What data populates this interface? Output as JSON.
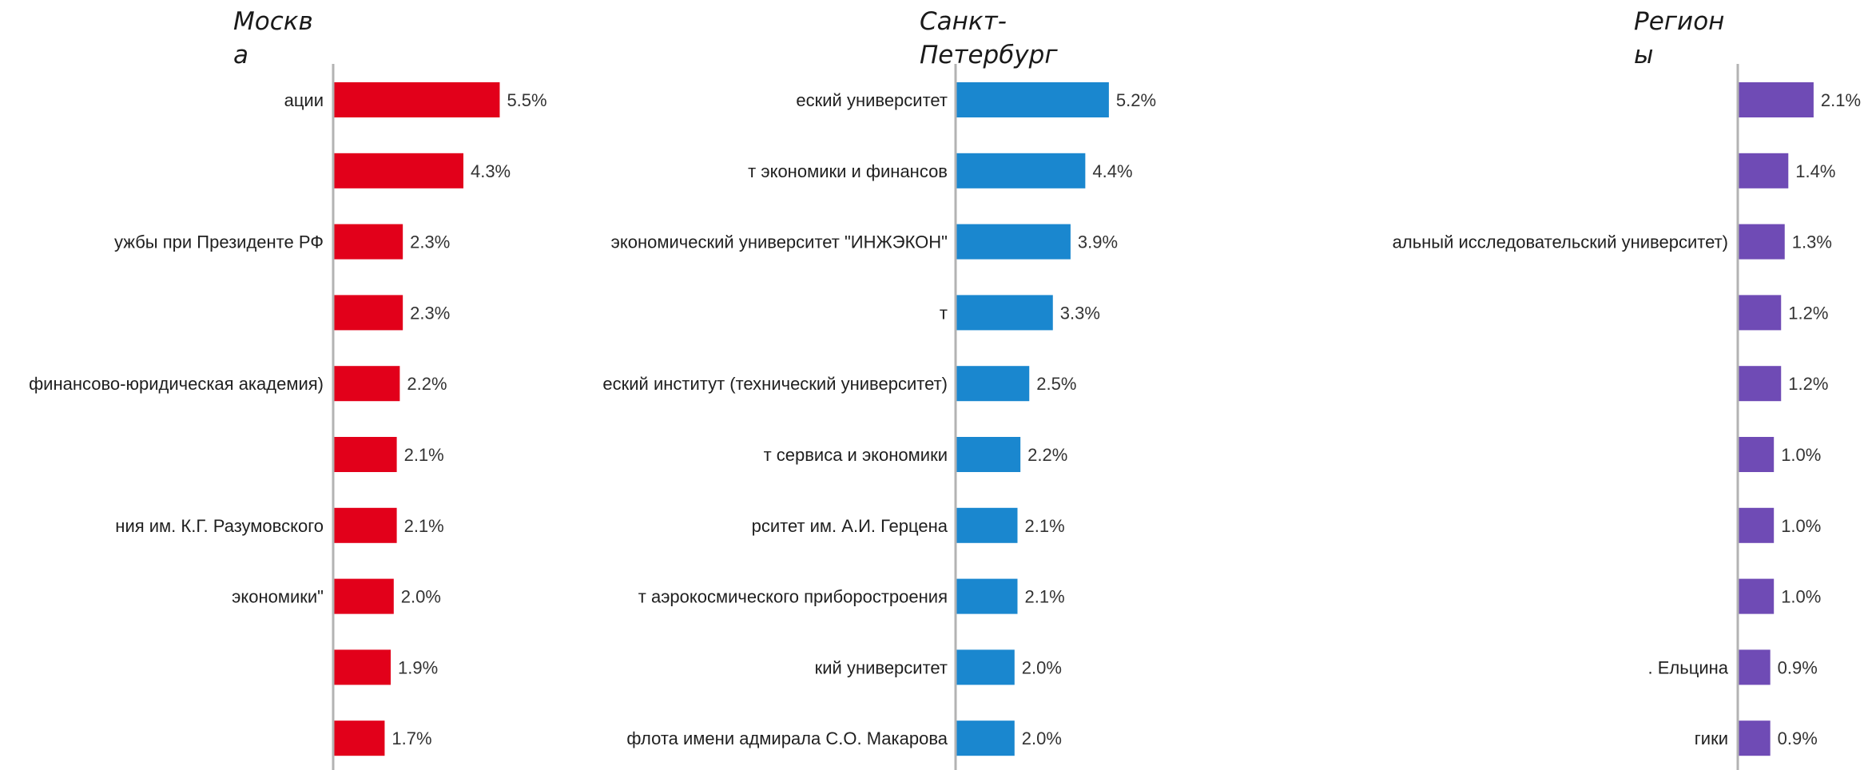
{
  "chart_data": [
    {
      "type": "bar",
      "orientation": "horizontal",
      "title": "Москва",
      "title_display": "Москв\nа",
      "color": "#e2001a",
      "categories": [
        "ации",
        "",
        "ужбы при Президенте РФ",
        "",
        "финансово-юридическая академия)",
        "",
        "ния им. К.Г. Разумовского",
        "экономики\"",
        "",
        ""
      ],
      "values": [
        5.5,
        4.3,
        2.3,
        2.3,
        2.2,
        2.1,
        2.1,
        2.0,
        1.9,
        1.7
      ],
      "value_labels": [
        "5.5%",
        "4.3%",
        "2.3%",
        "2.3%",
        "2.2%",
        "2.1%",
        "2.1%",
        "2.0%",
        "1.9%",
        "1.7%"
      ],
      "xlim": [
        0,
        6.0
      ],
      "grid": false
    },
    {
      "type": "bar",
      "orientation": "horizontal",
      "title": "Санкт-Петербург",
      "title_display": "Санкт-\nПетербург",
      "color": "#1a87cf",
      "categories": [
        "еский университет",
        "т экономики и финансов",
        "экономический университет \"ИНЖЭКОН\"",
        "т",
        "еский институт (технический университет)",
        "т сервиса и экономики",
        "рситет им. А.И. Герцена",
        "т аэрокосмического приборостроения",
        "кий университет",
        "флота имени адмирала С.О. Макарова"
      ],
      "values": [
        5.2,
        4.4,
        3.9,
        3.3,
        2.5,
        2.2,
        2.1,
        2.1,
        2.0,
        2.0
      ],
      "value_labels": [
        "5.2%",
        "4.4%",
        "3.9%",
        "3.3%",
        "2.5%",
        "2.2%",
        "2.1%",
        "2.1%",
        "2.0%",
        "2.0%"
      ],
      "xlim": [
        0,
        6.0
      ],
      "grid": false
    },
    {
      "type": "bar",
      "orientation": "horizontal",
      "title": "Регионы",
      "title_display": "Регион\nы",
      "color": "#6f4bb5",
      "categories": [
        "",
        "",
        "альный исследовательский университет)",
        "",
        "",
        "",
        "",
        "",
        ". Ельцина",
        "гики"
      ],
      "values": [
        2.1,
        1.4,
        1.3,
        1.2,
        1.2,
        1.0,
        1.0,
        1.0,
        0.9,
        0.9
      ],
      "value_labels": [
        "2.1%",
        "1.4%",
        "1.3%",
        "1.2%",
        "1.2%",
        "1.0%",
        "1.0%",
        "1.0%",
        "0.9%",
        "0.9%"
      ],
      "xlim": [
        0,
        6.0
      ],
      "grid": false
    }
  ]
}
